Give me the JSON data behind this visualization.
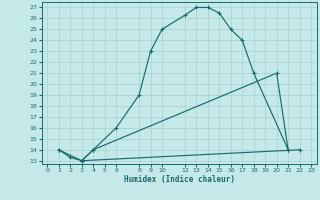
{
  "xlabel": "Humidex (Indice chaleur)",
  "bg_color": "#c5e8e8",
  "line_color": "#1a6b6b",
  "grid_color": "#a8d0d0",
  "ylim": [
    12.7,
    27.5
  ],
  "xlim": [
    -0.5,
    23.5
  ],
  "yticks": [
    13,
    14,
    15,
    16,
    17,
    18,
    19,
    20,
    21,
    22,
    23,
    24,
    25,
    26,
    27
  ],
  "xticks": [
    0,
    1,
    2,
    3,
    4,
    5,
    6,
    8,
    9,
    10,
    12,
    13,
    14,
    15,
    16,
    17,
    18,
    19,
    20,
    21,
    22,
    23
  ],
  "line1_x": [
    1,
    2,
    3,
    4,
    6,
    8,
    9,
    10,
    12,
    13,
    14,
    15,
    16,
    17,
    18,
    21
  ],
  "line1_y": [
    14.0,
    13.3,
    13.0,
    14.0,
    16.0,
    19.0,
    23.0,
    25.0,
    26.3,
    27.0,
    27.0,
    26.5,
    25.0,
    24.0,
    21.0,
    14.0
  ],
  "line2_x": [
    1,
    3,
    4,
    20,
    21
  ],
  "line2_y": [
    14.0,
    13.0,
    14.0,
    21.0,
    14.0
  ],
  "line3_x": [
    3,
    22
  ],
  "line3_y": [
    13.0,
    14.0
  ]
}
